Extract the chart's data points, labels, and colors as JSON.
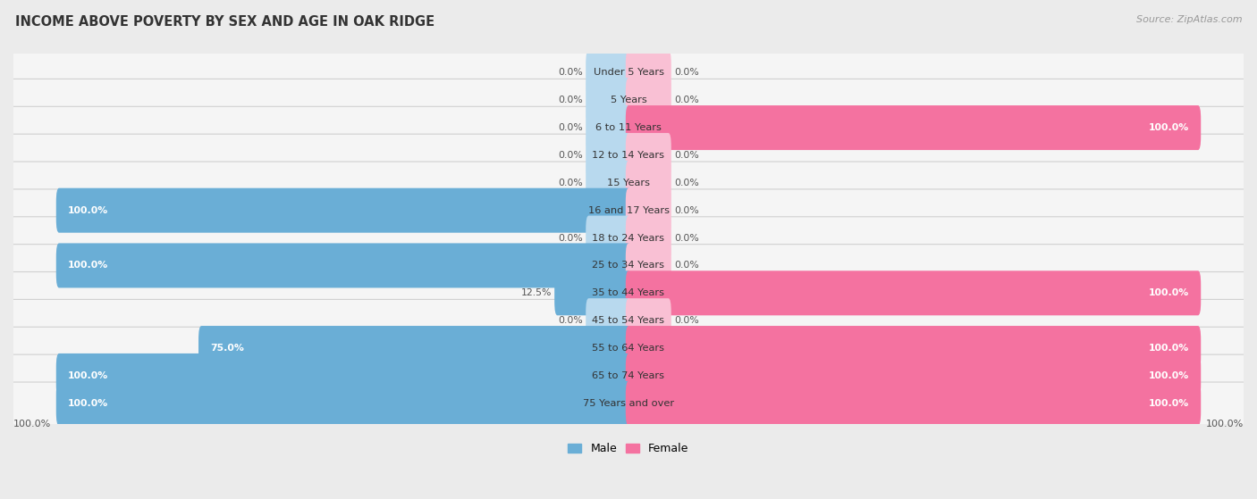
{
  "title": "INCOME ABOVE POVERTY BY SEX AND AGE IN OAK RIDGE",
  "source": "Source: ZipAtlas.com",
  "categories": [
    "Under 5 Years",
    "5 Years",
    "6 to 11 Years",
    "12 to 14 Years",
    "15 Years",
    "16 and 17 Years",
    "18 to 24 Years",
    "25 to 34 Years",
    "35 to 44 Years",
    "45 to 54 Years",
    "55 to 64 Years",
    "65 to 74 Years",
    "75 Years and over"
  ],
  "male": [
    0.0,
    0.0,
    0.0,
    0.0,
    0.0,
    100.0,
    0.0,
    100.0,
    12.5,
    0.0,
    75.0,
    100.0,
    100.0
  ],
  "female": [
    0.0,
    0.0,
    100.0,
    0.0,
    0.0,
    0.0,
    0.0,
    0.0,
    100.0,
    0.0,
    100.0,
    100.0,
    100.0
  ],
  "male_color": "#6aaed6",
  "female_color": "#f472a0",
  "male_color_stub": "#b8d9ee",
  "female_color_stub": "#f9c0d4",
  "bg_color": "#ebebeb",
  "bar_bg_color": "#f5f5f5",
  "row_border_color": "#d0d0d0",
  "max_value": 100.0,
  "legend_male": "Male",
  "legend_female": "Female",
  "stub_size": 7.0,
  "title_color": "#333333",
  "source_color": "#999999",
  "label_color": "#555555",
  "white": "#ffffff"
}
